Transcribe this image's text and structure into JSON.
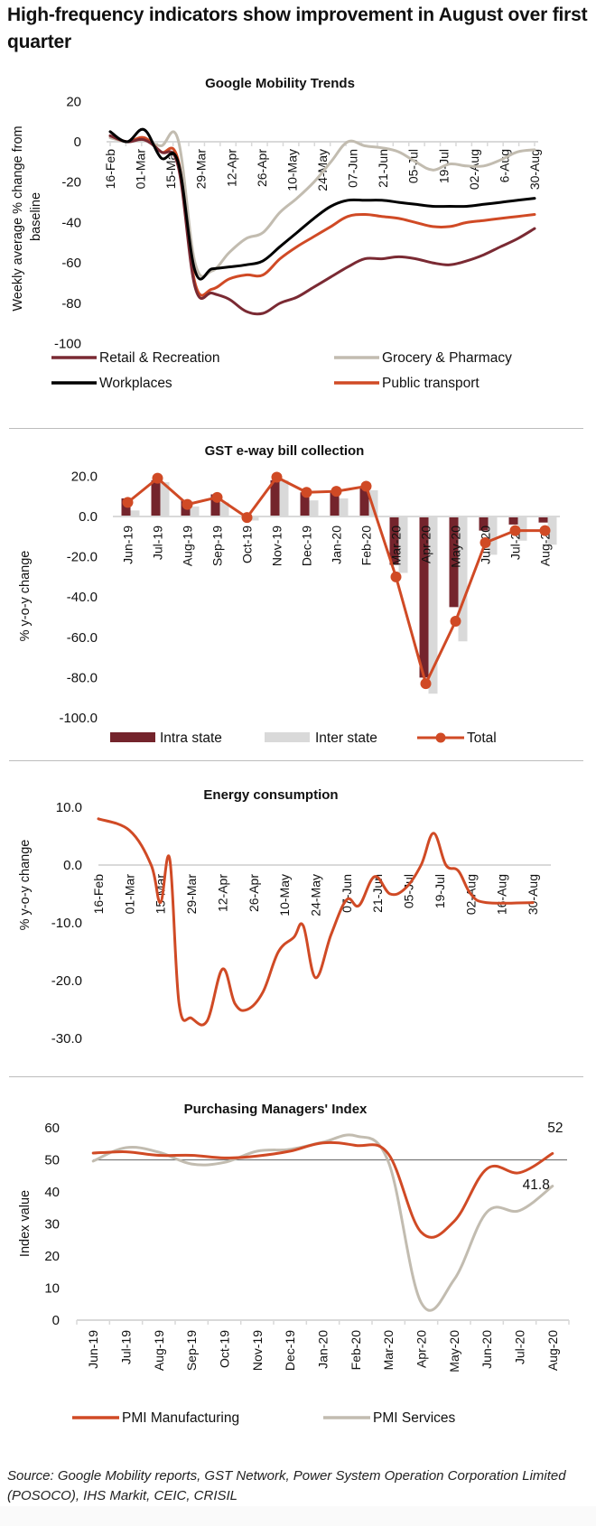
{
  "page": {
    "title": "High-frequency indicators show improvement in August over first quarter",
    "source": "Source: Google Mobility reports, GST Network, Power System Operation Corporation Limited (POSOCO), IHS Markit, CEIC, CRISIL"
  },
  "colors": {
    "retail": "#7a2a33",
    "grocery": "#c2bcb0",
    "workplaces": "#000000",
    "transport": "#d04a25",
    "intra": "#74242c",
    "inter": "#d9d9d9",
    "total": "#d04a25",
    "pmi_mfg": "#d04a25",
    "pmi_svc": "#c2bcb0",
    "axis": "#d9d9d9"
  },
  "chart_data": [
    {
      "id": "mobility",
      "type": "line",
      "title": "Google Mobility Trends",
      "ylabel": "Weekly average % change from baseline",
      "xlabel": "",
      "ylim": [
        -100,
        20
      ],
      "yticks": [
        20,
        0,
        -20,
        -40,
        -60,
        -80,
        -100
      ],
      "ytick_labels": [
        "20",
        "0",
        "-20",
        "-40",
        "-60",
        "-80",
        "-100"
      ],
      "categories": [
        "16-Feb",
        "01-Mar",
        "15-Mar",
        "29-Mar",
        "12-Apr",
        "26-Apr",
        "10-May",
        "24-May",
        "07-Jun",
        "21-Jun",
        "05-Jul",
        "19-Jul",
        "02-Aug",
        "6-Aug",
        "30-Aug"
      ],
      "x_start": "16-Feb",
      "x_end": "30-Aug",
      "legend": "bottom",
      "series": [
        {
          "name": "Retail & Recreation",
          "color_key": "retail",
          "values": [
            3,
            0,
            1,
            -5,
            -12,
            -72,
            -75,
            -78,
            -84,
            -85,
            -80,
            -77,
            -72,
            -67,
            -62,
            -58,
            -58,
            -57,
            -58,
            -60,
            -61,
            -59,
            -56,
            -52,
            -48,
            -43
          ]
        },
        {
          "name": "Grocery & Pharmacy",
          "color_key": "grocery",
          "values": [
            2,
            0,
            1,
            -2,
            1,
            -60,
            -64,
            -55,
            -48,
            -45,
            -35,
            -28,
            -20,
            -10,
            0,
            -2,
            -3,
            -5,
            -10,
            -14,
            -11,
            -12,
            -12,
            -9,
            -5,
            -4
          ]
        },
        {
          "name": "Workplaces",
          "color_key": "workplaces",
          "values": [
            5,
            0,
            6,
            -8,
            -10,
            -64,
            -63,
            -62,
            -61,
            -59,
            -52,
            -45,
            -38,
            -32,
            -29,
            -29,
            -29,
            -30,
            -31,
            -32,
            -32,
            -32,
            -31,
            -30,
            -29,
            -28
          ]
        },
        {
          "name": "Public transport",
          "color_key": "transport",
          "values": [
            3,
            0,
            2,
            -5,
            -9,
            -70,
            -73,
            -68,
            -66,
            -66,
            -58,
            -52,
            -47,
            -42,
            -37,
            -36,
            -37,
            -38,
            -40,
            -42,
            -42,
            -40,
            -39,
            -38,
            -37,
            -36
          ]
        }
      ]
    },
    {
      "id": "gst",
      "type": "bar",
      "title": "GST e-way bill collection",
      "ylabel": "% y-o-y change",
      "xlabel": "",
      "ylim": [
        -100,
        20
      ],
      "yticks": [
        20,
        0,
        -20,
        -40,
        -60,
        -80,
        -100
      ],
      "ytick_labels": [
        "20.0",
        "0.0",
        "-20.0",
        "-40.0",
        "-60.0",
        "-80.0",
        "-100.0"
      ],
      "categories": [
        "Jun-19",
        "Jul-19",
        "Aug-19",
        "Sep-19",
        "Oct-19",
        "Nov-19",
        "Dec-19",
        "Jan-20",
        "Feb-20",
        "Mar-20",
        "Apr-20",
        "May-20",
        "Jun-20",
        "Jul-20",
        "Aug-20"
      ],
      "legend": "bottom",
      "series": [
        {
          "name": "Intra state",
          "kind": "bar",
          "color_key": "intra",
          "values": [
            9,
            18,
            8,
            11,
            0,
            18,
            12,
            13,
            15,
            -24,
            -80,
            -45,
            -7,
            -4,
            -3
          ]
        },
        {
          "name": "Inter state",
          "kind": "bar",
          "color_key": "inter",
          "values": [
            3,
            17,
            5,
            7,
            -2,
            18,
            8,
            9,
            13,
            -28,
            -88,
            -62,
            -19,
            -12,
            -14
          ]
        },
        {
          "name": "Total",
          "kind": "line-marker",
          "color_key": "total",
          "values": [
            7,
            19,
            6,
            9.5,
            -0.5,
            19.5,
            12,
            12.5,
            15,
            -30,
            -83,
            -52,
            -13,
            -7,
            -7
          ]
        }
      ]
    },
    {
      "id": "energy",
      "type": "line",
      "title": "Energy consumption",
      "ylabel": "% y-o-y change",
      "xlabel": "",
      "ylim": [
        -30,
        10
      ],
      "yticks": [
        10,
        0,
        -10,
        -20,
        -30
      ],
      "ytick_labels": [
        "10.0",
        "0.0",
        "-10.0",
        "-20.0",
        "-30.0"
      ],
      "categories": [
        "16-Feb",
        "01-Mar",
        "15-Mar",
        "29-Mar",
        "12-Apr",
        "26-Apr",
        "10-May",
        "24-May",
        "07-Jun",
        "21-Jun",
        "05-Jul",
        "19-Jul",
        "02-Aug",
        "16-Aug",
        "30-Aug"
      ],
      "legend": "none",
      "series": [
        {
          "name": "Energy consumption",
          "color_key": "transport",
          "points": [
            [
              0,
              8
            ],
            [
              1,
              6
            ],
            [
              1.7,
              0
            ],
            [
              2.0,
              -6.5
            ],
            [
              2.3,
              1
            ],
            [
              2.6,
              -24
            ],
            [
              3.0,
              -26.5
            ],
            [
              3.5,
              -27
            ],
            [
              4.0,
              -18
            ],
            [
              4.4,
              -24
            ],
            [
              4.8,
              -25
            ],
            [
              5.3,
              -22
            ],
            [
              5.8,
              -15
            ],
            [
              6.3,
              -12.5
            ],
            [
              6.6,
              -10.5
            ],
            [
              7.0,
              -19.5
            ],
            [
              7.5,
              -12
            ],
            [
              8.0,
              -6
            ],
            [
              8.4,
              -7
            ],
            [
              8.9,
              -2
            ],
            [
              9.4,
              -5
            ],
            [
              9.9,
              -4
            ],
            [
              10.4,
              0
            ],
            [
              10.8,
              5.5
            ],
            [
              11.2,
              0
            ],
            [
              11.6,
              -1
            ],
            [
              12.0,
              -5
            ],
            [
              12.5,
              -6.5
            ],
            [
              14.0,
              -6.5
            ]
          ]
        }
      ]
    },
    {
      "id": "pmi",
      "type": "line",
      "title": "Purchasing Managers' Index",
      "ylabel": "Index value",
      "xlabel": "",
      "ylim": [
        0,
        60
      ],
      "yticks": [
        60,
        50,
        40,
        30,
        20,
        10,
        0
      ],
      "ytick_labels": [
        "60",
        "50",
        "40",
        "30",
        "20",
        "10",
        "0"
      ],
      "reference_line": 50,
      "categories": [
        "Jun-19",
        "Jul-19",
        "Aug-19",
        "Sep-19",
        "Oct-19",
        "Nov-19",
        "Dec-19",
        "Jan-20",
        "Feb-20",
        "Mar-20",
        "Apr-20",
        "May-20",
        "Jun-20",
        "Jul-20",
        "Aug-20"
      ],
      "legend": "bottom",
      "annotations": [
        {
          "series": "PMI Manufacturing",
          "text": "52"
        },
        {
          "series": "PMI Services",
          "text": "41.8"
        }
      ],
      "series": [
        {
          "name": "PMI Manufacturing",
          "color_key": "pmi_mfg",
          "values": [
            52.1,
            52.5,
            51.4,
            51.4,
            50.6,
            51.2,
            52.7,
            55.3,
            54.5,
            51.8,
            27.4,
            30.8,
            47.2,
            46.0,
            52.0
          ]
        },
        {
          "name": "PMI Services",
          "color_key": "pmi_svc",
          "values": [
            49.6,
            53.8,
            52.4,
            48.7,
            49.2,
            52.7,
            53.3,
            55.5,
            57.5,
            49.3,
            5.4,
            12.6,
            33.7,
            34.2,
            41.8
          ]
        }
      ]
    }
  ]
}
